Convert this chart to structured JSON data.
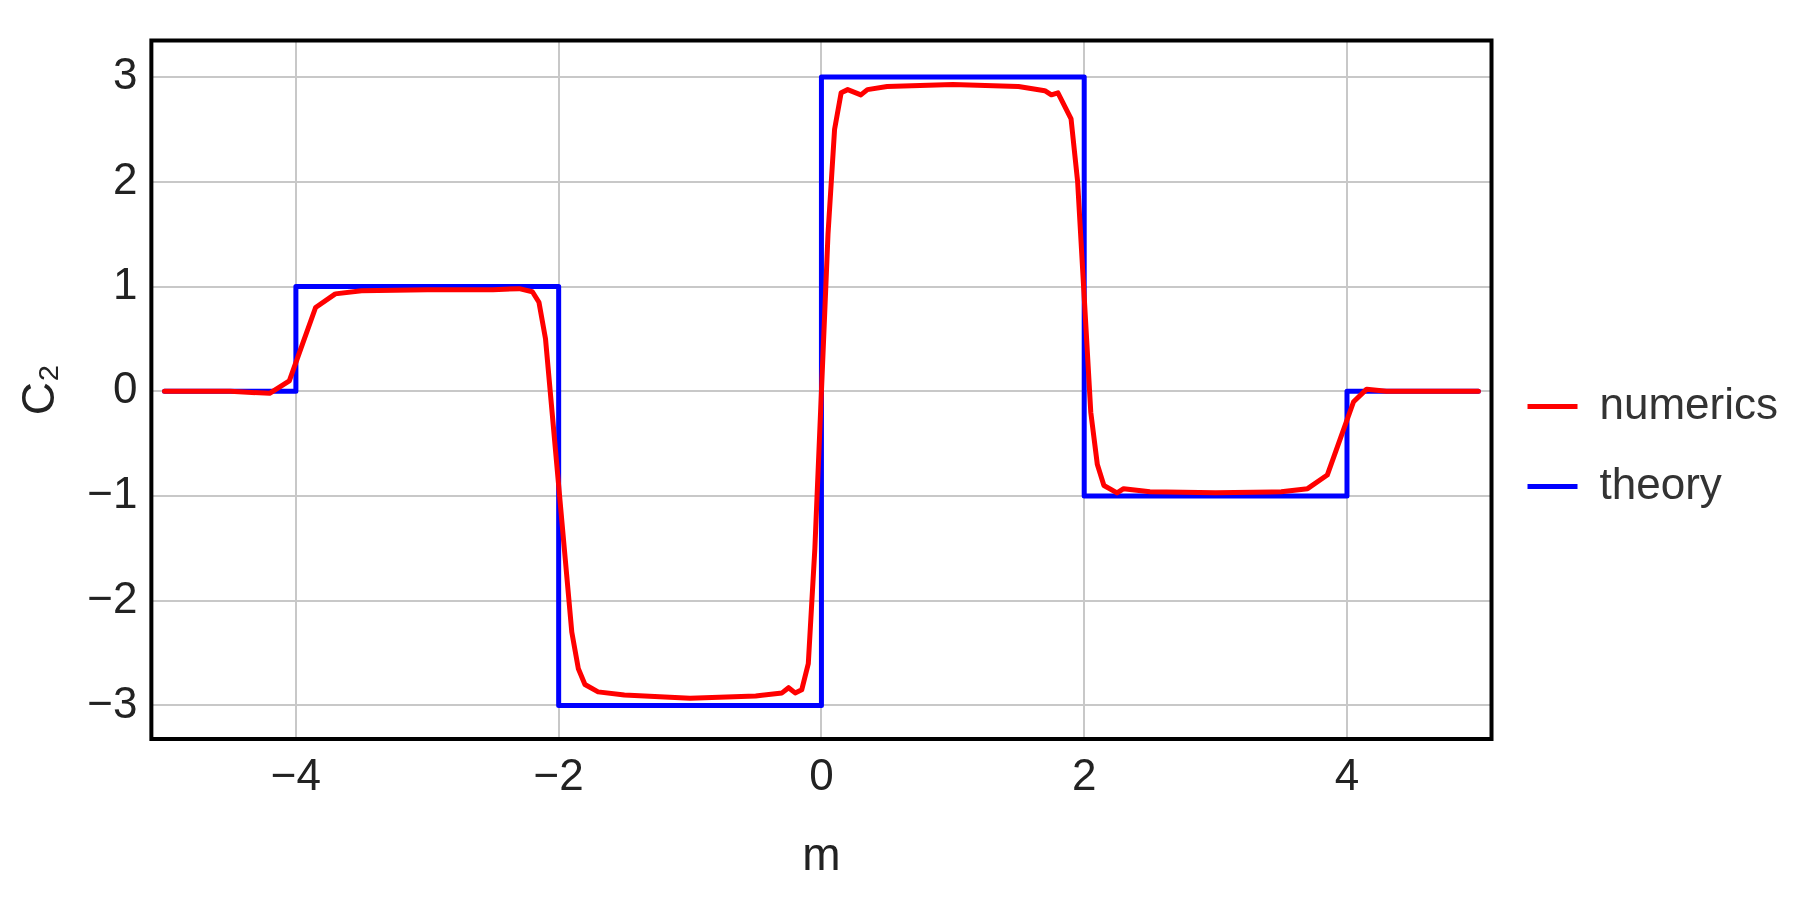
{
  "chart_data": {
    "type": "line",
    "xlabel": "m",
    "ylabel": "C₂",
    "xlim": [
      -5.1,
      5.1
    ],
    "ylim": [
      -3.32,
      3.35
    ],
    "xticks": [
      -4,
      -2,
      0,
      2,
      4
    ],
    "yticks": [
      -3,
      -2,
      -1,
      0,
      1,
      2,
      3
    ],
    "grid": true,
    "legend": "right",
    "marker": "none",
    "line_style": "solid",
    "series": [
      {
        "name": "numerics",
        "color": "#ff0000",
        "x": [
          -5,
          -4.5,
          -4.2,
          -4.05,
          -3.95,
          -3.85,
          -3.7,
          -3.5,
          -3,
          -2.5,
          -2.3,
          -2.2,
          -2.15,
          -2.1,
          -2.05,
          -2,
          -1.95,
          -1.9,
          -1.85,
          -1.8,
          -1.7,
          -1.5,
          -1,
          -0.5,
          -0.3,
          -0.25,
          -0.2,
          -0.15,
          -0.1,
          -0.05,
          0,
          0.05,
          0.1,
          0.15,
          0.2,
          0.3,
          0.35,
          0.5,
          1,
          1.5,
          1.7,
          1.75,
          1.8,
          1.9,
          1.95,
          2,
          2.05,
          2.1,
          2.15,
          2.25,
          2.3,
          2.5,
          3,
          3.5,
          3.7,
          3.85,
          3.95,
          4.05,
          4.15,
          4.3,
          5
        ],
        "values": [
          0,
          0,
          -0.02,
          0.1,
          0.45,
          0.8,
          0.93,
          0.96,
          0.97,
          0.97,
          0.98,
          0.95,
          0.85,
          0.5,
          -0.2,
          -0.9,
          -1.6,
          -2.3,
          -2.65,
          -2.8,
          -2.87,
          -2.9,
          -2.93,
          -2.91,
          -2.88,
          -2.83,
          -2.88,
          -2.85,
          -2.6,
          -1.5,
          0,
          1.5,
          2.5,
          2.85,
          2.88,
          2.83,
          2.88,
          2.91,
          2.93,
          2.91,
          2.87,
          2.83,
          2.85,
          2.6,
          2,
          0.9,
          -0.2,
          -0.7,
          -0.9,
          -0.97,
          -0.93,
          -0.96,
          -0.97,
          -0.96,
          -0.93,
          -0.8,
          -0.45,
          -0.1,
          0.02,
          0,
          0
        ]
      },
      {
        "name": "theory",
        "color": "#0000ff",
        "x": [
          -5,
          -4,
          -4,
          -2,
          -2,
          0,
          0,
          2,
          2,
          4,
          4,
          5
        ],
        "values": [
          0,
          0,
          1,
          1,
          -3,
          -3,
          3,
          3,
          -1,
          -1,
          0,
          0
        ]
      }
    ]
  }
}
